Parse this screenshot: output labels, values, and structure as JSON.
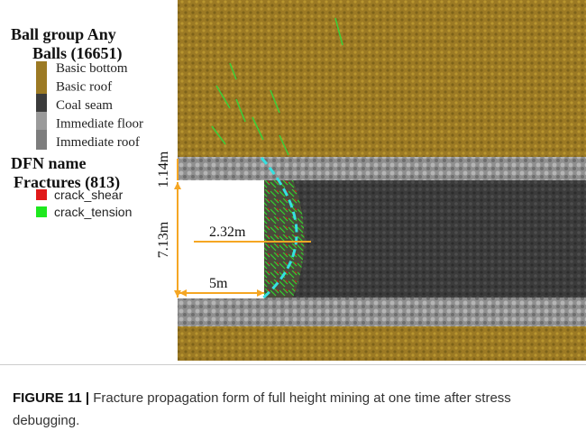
{
  "legend": {
    "group_title": "Ball group Any",
    "balls_title": "Balls (16651)",
    "items": [
      "Basic bottom",
      "Basic roof",
      "Coal seam",
      "Immediate floor",
      "Immediate roof"
    ],
    "dfn_title": "DFN name",
    "fractures_title": "Fractures (813)",
    "fracture_items": [
      "crack_shear",
      "crack_tension"
    ]
  },
  "annotations": {
    "roof_thickness": "1.14m",
    "seam_height": "7.13m",
    "fracture_depth": "2.32m",
    "opening_width": "5m"
  },
  "caption": {
    "label": "FIGURE 11 |",
    "text": "Fracture propagation form of full height mining at one time after stress debugging."
  }
}
